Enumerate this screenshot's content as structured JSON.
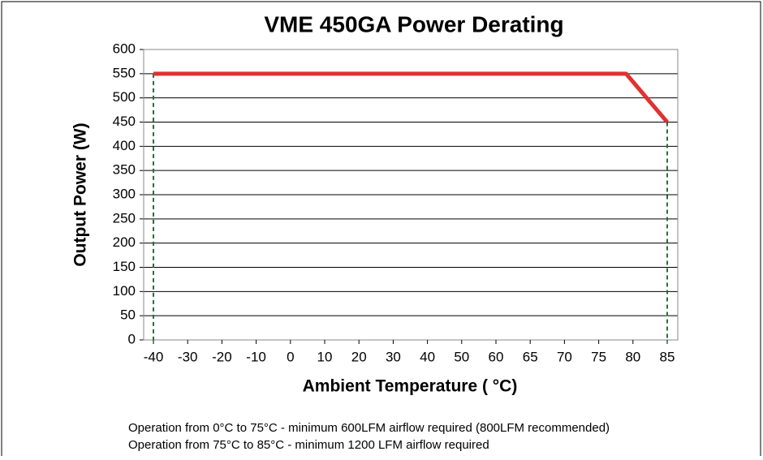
{
  "chart_data": {
    "type": "line",
    "title": "VME 450GA Power Derating",
    "x_label": "Ambient Temperature ( °C)",
    "y_label": "Output Power (W)",
    "series": [
      {
        "name": "Output Power",
        "color": "#e03131",
        "x": [
          -40,
          79,
          85
        ],
        "values": [
          550,
          550,
          450
        ]
      }
    ],
    "xlim": [
      -40,
      85
    ],
    "xticks": [
      -40,
      -30,
      -20,
      -10,
      0,
      10,
      20,
      30,
      40,
      50,
      60,
      65,
      70,
      75,
      80,
      85
    ],
    "ylim": [
      0,
      600
    ],
    "yticks": [
      0,
      50,
      100,
      150,
      200,
      250,
      300,
      350,
      400,
      450,
      500,
      550,
      600
    ],
    "grid": true,
    "notes": [
      "Operation from 0°C to 75°C - minimum 600LFM airflow required (800LFM recommended)",
      "Operation from 75°C to 85°C - minimum 1200 LFM airflow required"
    ]
  }
}
